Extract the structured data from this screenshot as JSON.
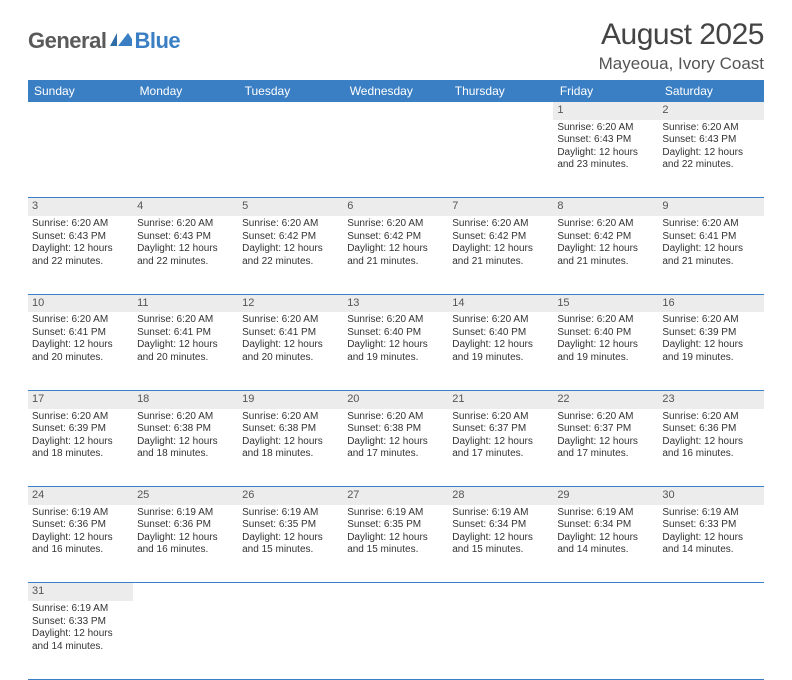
{
  "colors": {
    "header_bg": "#3a7fc4",
    "header_text": "#ffffff",
    "daynum_bg": "#ececec",
    "row_divider": "#3a7fc4",
    "body_text": "#333333",
    "logo_gray": "#5a5a5a",
    "logo_blue": "#3a7fc4"
  },
  "logo": {
    "text1": "General",
    "text2": "Blue"
  },
  "header": {
    "title": "August 2025",
    "location": "Mayeoua, Ivory Coast"
  },
  "weekdays": [
    "Sunday",
    "Monday",
    "Tuesday",
    "Wednesday",
    "Thursday",
    "Friday",
    "Saturday"
  ],
  "weeks": [
    [
      null,
      null,
      null,
      null,
      null,
      {
        "n": "1",
        "sr": "Sunrise: 6:20 AM",
        "ss": "Sunset: 6:43 PM",
        "dl1": "Daylight: 12 hours",
        "dl2": "and 23 minutes."
      },
      {
        "n": "2",
        "sr": "Sunrise: 6:20 AM",
        "ss": "Sunset: 6:43 PM",
        "dl1": "Daylight: 12 hours",
        "dl2": "and 22 minutes."
      }
    ],
    [
      {
        "n": "3",
        "sr": "Sunrise: 6:20 AM",
        "ss": "Sunset: 6:43 PM",
        "dl1": "Daylight: 12 hours",
        "dl2": "and 22 minutes."
      },
      {
        "n": "4",
        "sr": "Sunrise: 6:20 AM",
        "ss": "Sunset: 6:43 PM",
        "dl1": "Daylight: 12 hours",
        "dl2": "and 22 minutes."
      },
      {
        "n": "5",
        "sr": "Sunrise: 6:20 AM",
        "ss": "Sunset: 6:42 PM",
        "dl1": "Daylight: 12 hours",
        "dl2": "and 22 minutes."
      },
      {
        "n": "6",
        "sr": "Sunrise: 6:20 AM",
        "ss": "Sunset: 6:42 PM",
        "dl1": "Daylight: 12 hours",
        "dl2": "and 21 minutes."
      },
      {
        "n": "7",
        "sr": "Sunrise: 6:20 AM",
        "ss": "Sunset: 6:42 PM",
        "dl1": "Daylight: 12 hours",
        "dl2": "and 21 minutes."
      },
      {
        "n": "8",
        "sr": "Sunrise: 6:20 AM",
        "ss": "Sunset: 6:42 PM",
        "dl1": "Daylight: 12 hours",
        "dl2": "and 21 minutes."
      },
      {
        "n": "9",
        "sr": "Sunrise: 6:20 AM",
        "ss": "Sunset: 6:41 PM",
        "dl1": "Daylight: 12 hours",
        "dl2": "and 21 minutes."
      }
    ],
    [
      {
        "n": "10",
        "sr": "Sunrise: 6:20 AM",
        "ss": "Sunset: 6:41 PM",
        "dl1": "Daylight: 12 hours",
        "dl2": "and 20 minutes."
      },
      {
        "n": "11",
        "sr": "Sunrise: 6:20 AM",
        "ss": "Sunset: 6:41 PM",
        "dl1": "Daylight: 12 hours",
        "dl2": "and 20 minutes."
      },
      {
        "n": "12",
        "sr": "Sunrise: 6:20 AM",
        "ss": "Sunset: 6:41 PM",
        "dl1": "Daylight: 12 hours",
        "dl2": "and 20 minutes."
      },
      {
        "n": "13",
        "sr": "Sunrise: 6:20 AM",
        "ss": "Sunset: 6:40 PM",
        "dl1": "Daylight: 12 hours",
        "dl2": "and 19 minutes."
      },
      {
        "n": "14",
        "sr": "Sunrise: 6:20 AM",
        "ss": "Sunset: 6:40 PM",
        "dl1": "Daylight: 12 hours",
        "dl2": "and 19 minutes."
      },
      {
        "n": "15",
        "sr": "Sunrise: 6:20 AM",
        "ss": "Sunset: 6:40 PM",
        "dl1": "Daylight: 12 hours",
        "dl2": "and 19 minutes."
      },
      {
        "n": "16",
        "sr": "Sunrise: 6:20 AM",
        "ss": "Sunset: 6:39 PM",
        "dl1": "Daylight: 12 hours",
        "dl2": "and 19 minutes."
      }
    ],
    [
      {
        "n": "17",
        "sr": "Sunrise: 6:20 AM",
        "ss": "Sunset: 6:39 PM",
        "dl1": "Daylight: 12 hours",
        "dl2": "and 18 minutes."
      },
      {
        "n": "18",
        "sr": "Sunrise: 6:20 AM",
        "ss": "Sunset: 6:38 PM",
        "dl1": "Daylight: 12 hours",
        "dl2": "and 18 minutes."
      },
      {
        "n": "19",
        "sr": "Sunrise: 6:20 AM",
        "ss": "Sunset: 6:38 PM",
        "dl1": "Daylight: 12 hours",
        "dl2": "and 18 minutes."
      },
      {
        "n": "20",
        "sr": "Sunrise: 6:20 AM",
        "ss": "Sunset: 6:38 PM",
        "dl1": "Daylight: 12 hours",
        "dl2": "and 17 minutes."
      },
      {
        "n": "21",
        "sr": "Sunrise: 6:20 AM",
        "ss": "Sunset: 6:37 PM",
        "dl1": "Daylight: 12 hours",
        "dl2": "and 17 minutes."
      },
      {
        "n": "22",
        "sr": "Sunrise: 6:20 AM",
        "ss": "Sunset: 6:37 PM",
        "dl1": "Daylight: 12 hours",
        "dl2": "and 17 minutes."
      },
      {
        "n": "23",
        "sr": "Sunrise: 6:20 AM",
        "ss": "Sunset: 6:36 PM",
        "dl1": "Daylight: 12 hours",
        "dl2": "and 16 minutes."
      }
    ],
    [
      {
        "n": "24",
        "sr": "Sunrise: 6:19 AM",
        "ss": "Sunset: 6:36 PM",
        "dl1": "Daylight: 12 hours",
        "dl2": "and 16 minutes."
      },
      {
        "n": "25",
        "sr": "Sunrise: 6:19 AM",
        "ss": "Sunset: 6:36 PM",
        "dl1": "Daylight: 12 hours",
        "dl2": "and 16 minutes."
      },
      {
        "n": "26",
        "sr": "Sunrise: 6:19 AM",
        "ss": "Sunset: 6:35 PM",
        "dl1": "Daylight: 12 hours",
        "dl2": "and 15 minutes."
      },
      {
        "n": "27",
        "sr": "Sunrise: 6:19 AM",
        "ss": "Sunset: 6:35 PM",
        "dl1": "Daylight: 12 hours",
        "dl2": "and 15 minutes."
      },
      {
        "n": "28",
        "sr": "Sunrise: 6:19 AM",
        "ss": "Sunset: 6:34 PM",
        "dl1": "Daylight: 12 hours",
        "dl2": "and 15 minutes."
      },
      {
        "n": "29",
        "sr": "Sunrise: 6:19 AM",
        "ss": "Sunset: 6:34 PM",
        "dl1": "Daylight: 12 hours",
        "dl2": "and 14 minutes."
      },
      {
        "n": "30",
        "sr": "Sunrise: 6:19 AM",
        "ss": "Sunset: 6:33 PM",
        "dl1": "Daylight: 12 hours",
        "dl2": "and 14 minutes."
      }
    ],
    [
      {
        "n": "31",
        "sr": "Sunrise: 6:19 AM",
        "ss": "Sunset: 6:33 PM",
        "dl1": "Daylight: 12 hours",
        "dl2": "and 14 minutes."
      },
      null,
      null,
      null,
      null,
      null,
      null
    ]
  ]
}
